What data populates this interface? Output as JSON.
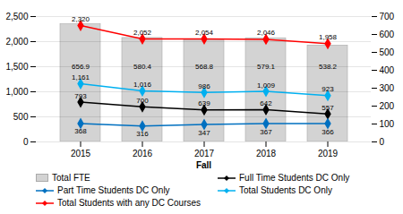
{
  "chart_data": {
    "type": "bar",
    "xlabel": "Fall",
    "x": [
      2015,
      2016,
      2017,
      2018,
      2019
    ],
    "ylim": [
      0,
      2500
    ],
    "yticks": [
      0,
      500,
      {
        "value": 1000,
        "label": "1,000"
      },
      {
        "value": 1500,
        "label": "1,500"
      },
      {
        "value": 2000,
        "label": "2,000"
      },
      {
        "value": 2500,
        "label": "2,500"
      }
    ],
    "y2lim": [
      0,
      700
    ],
    "y2ticks": [
      0,
      100,
      200,
      300,
      400,
      500,
      600,
      700
    ],
    "grid": true,
    "legend": "bottom",
    "data_labels": true,
    "series": [
      {
        "name": "Total FTE",
        "type": "bar",
        "axis": "y2",
        "color": "#d3d3d3",
        "values": [
          656.9,
          580.4,
          568.8,
          579.1,
          538.2
        ]
      },
      {
        "name": "Full Time Students DC Only",
        "type": "line",
        "color": "#000000",
        "marker": "diamond",
        "values": [
          793,
          700,
          639,
          642,
          557
        ]
      },
      {
        "name": "Part Time Students DC Only",
        "type": "line",
        "color": "#0070c0",
        "marker": "diamond",
        "values": [
          368,
          316,
          347,
          367,
          366
        ]
      },
      {
        "name": "Total Students DC Only",
        "type": "line",
        "color": "#00b0f0",
        "marker": "diamond",
        "values": [
          1161,
          1016,
          986,
          1009,
          923
        ],
        "value_labels": [
          "1,161",
          "1,016",
          "986",
          "1,009",
          "923"
        ]
      },
      {
        "name": "Total Students with any DC Courses",
        "type": "line",
        "color": "#ff0000",
        "marker": "diamond",
        "values": [
          2320,
          2052,
          2054,
          2046,
          1958
        ],
        "value_labels": [
          "2,320",
          "2,052",
          "2,054",
          "2,046",
          "1,958"
        ]
      }
    ]
  }
}
